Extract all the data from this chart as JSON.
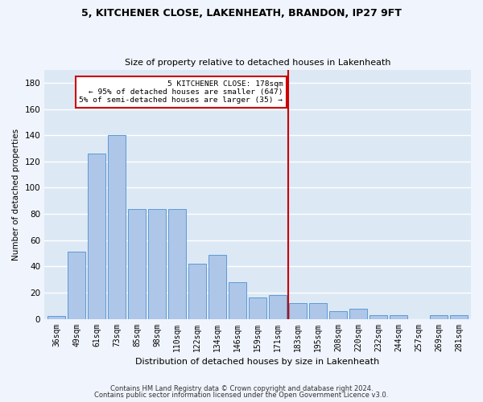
{
  "title_line1": "5, KITCHENER CLOSE, LAKENHEATH, BRANDON, IP27 9FT",
  "title_line2": "Size of property relative to detached houses in Lakenheath",
  "xlabel": "Distribution of detached houses by size in Lakenheath",
  "ylabel": "Number of detached properties",
  "footer_line1": "Contains HM Land Registry data © Crown copyright and database right 2024.",
  "footer_line2": "Contains public sector information licensed under the Open Government Licence v3.0.",
  "categories": [
    "36sqm",
    "49sqm",
    "61sqm",
    "73sqm",
    "85sqm",
    "98sqm",
    "110sqm",
    "122sqm",
    "134sqm",
    "146sqm",
    "159sqm",
    "171sqm",
    "183sqm",
    "195sqm",
    "208sqm",
    "220sqm",
    "232sqm",
    "244sqm",
    "257sqm",
    "269sqm",
    "281sqm"
  ],
  "values": [
    2,
    51,
    126,
    140,
    84,
    84,
    84,
    42,
    49,
    28,
    16,
    18,
    12,
    12,
    6,
    8,
    3,
    3,
    0,
    3,
    3
  ],
  "bar_color": "#aec6e8",
  "bar_edge_color": "#5b9bd5",
  "bg_color": "#dde8f5",
  "grid_color": "#ffffff",
  "marker_line_color": "#cc0000",
  "annotation_box_color": "#cc0000",
  "ylim": [
    0,
    190
  ],
  "yticks": [
    0,
    20,
    40,
    60,
    80,
    100,
    120,
    140,
    160,
    180
  ],
  "fig_bg_color": "#f0f4fc"
}
